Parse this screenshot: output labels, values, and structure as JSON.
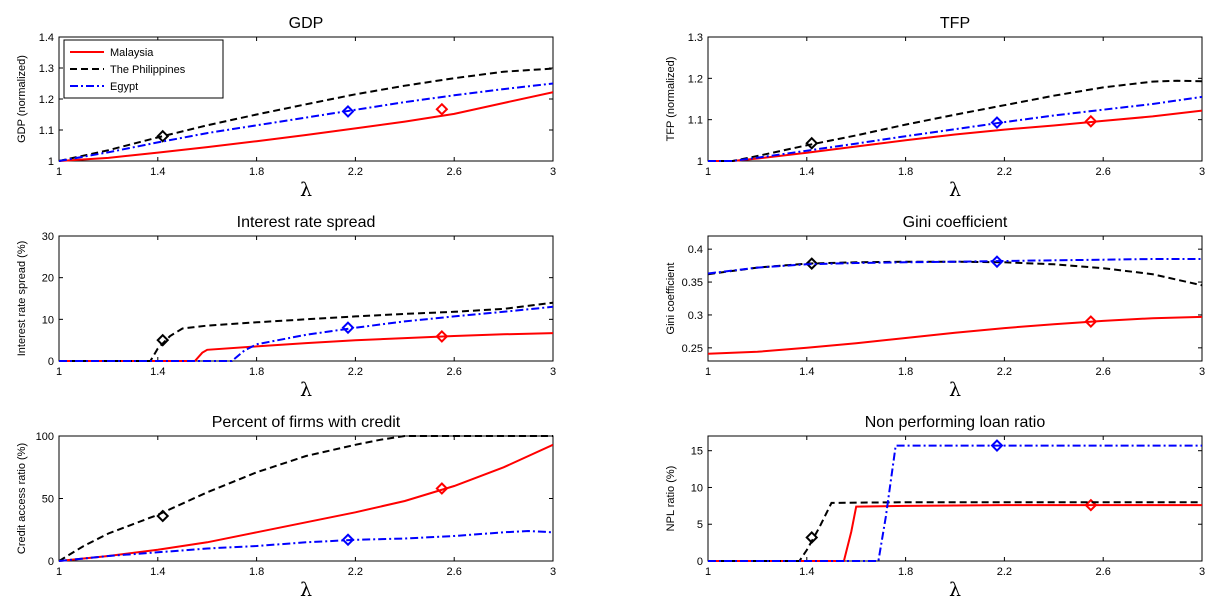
{
  "figure": {
    "xlabel": "λ"
  },
  "chart_data": [
    {
      "type": "line",
      "title": "GDP",
      "xlabel": "λ",
      "ylabel": "GDP (normalized)",
      "xlim": [
        1,
        3
      ],
      "ylim": [
        1,
        1.4
      ],
      "xticks": [
        "1",
        "1.4",
        "1.8",
        "2.2",
        "2.6",
        "3"
      ],
      "yticks": [
        "1",
        "1.1",
        "1.2",
        "1.3",
        "1.4"
      ],
      "legend": {
        "position": "top-left",
        "entries": [
          "Malaysia",
          "The Philippines",
          "Egypt"
        ]
      },
      "series": [
        {
          "name": "Malaysia",
          "color": "#ff0000",
          "style": "solid",
          "x": [
            1,
            1.2,
            1.4,
            1.6,
            1.8,
            2.0,
            2.2,
            2.4,
            2.6,
            2.8,
            3.0
          ],
          "y": [
            1.0,
            1.01,
            1.027,
            1.045,
            1.064,
            1.084,
            1.105,
            1.127,
            1.152,
            1.187,
            1.222
          ],
          "marker": [
            2.55,
            1.167
          ]
        },
        {
          "name": "The Philippines",
          "color": "#000000",
          "style": "dashed",
          "x": [
            1,
            1.2,
            1.4,
            1.6,
            1.8,
            2.0,
            2.2,
            2.4,
            2.6,
            2.8,
            3.0
          ],
          "y": [
            1.0,
            1.035,
            1.076,
            1.115,
            1.15,
            1.183,
            1.215,
            1.243,
            1.267,
            1.288,
            1.298
          ],
          "marker": [
            1.42,
            1.08
          ]
        },
        {
          "name": "Egypt",
          "color": "#0000ff",
          "style": "dashdot",
          "x": [
            1,
            1.2,
            1.4,
            1.6,
            1.8,
            2.0,
            2.2,
            2.4,
            2.6,
            2.8,
            3.0
          ],
          "y": [
            1.0,
            1.028,
            1.06,
            1.09,
            1.115,
            1.14,
            1.165,
            1.19,
            1.212,
            1.232,
            1.25
          ],
          "marker": [
            2.17,
            1.16
          ]
        }
      ]
    },
    {
      "type": "line",
      "title": "TFP",
      "xlabel": "λ",
      "ylabel": "TFP (normalized)",
      "xlim": [
        1,
        3
      ],
      "ylim": [
        1,
        1.3
      ],
      "xticks": [
        "1",
        "1.4",
        "1.8",
        "2.2",
        "2.6",
        "3"
      ],
      "yticks": [
        "1",
        "1.1",
        "1.2",
        "1.3"
      ],
      "series": [
        {
          "name": "Malaysia",
          "color": "#ff0000",
          "style": "solid",
          "x": [
            1,
            1.1,
            1.2,
            1.4,
            1.6,
            1.8,
            2.0,
            2.2,
            2.4,
            2.6,
            2.8,
            3.0
          ],
          "y": [
            1.0,
            1.0,
            1.006,
            1.02,
            1.035,
            1.05,
            1.064,
            1.076,
            1.086,
            1.097,
            1.108,
            1.122
          ],
          "marker": [
            2.55,
            1.096
          ]
        },
        {
          "name": "The Philippines",
          "color": "#000000",
          "style": "dashed",
          "x": [
            1,
            1.1,
            1.2,
            1.4,
            1.6,
            1.8,
            2.0,
            2.2,
            2.4,
            2.6,
            2.8,
            2.9,
            3.0
          ],
          "y": [
            1.0,
            1.0,
            1.012,
            1.038,
            1.062,
            1.088,
            1.112,
            1.135,
            1.158,
            1.178,
            1.192,
            1.194,
            1.193
          ],
          "marker": [
            1.42,
            1.043
          ]
        },
        {
          "name": "Egypt",
          "color": "#0000ff",
          "style": "dashdot",
          "x": [
            1,
            1.1,
            1.2,
            1.4,
            1.6,
            1.8,
            2.0,
            2.2,
            2.4,
            2.6,
            2.8,
            3.0
          ],
          "y": [
            1.0,
            1.0,
            1.008,
            1.025,
            1.042,
            1.06,
            1.077,
            1.094,
            1.11,
            1.124,
            1.138,
            1.155
          ],
          "marker": [
            2.17,
            1.093
          ]
        }
      ]
    },
    {
      "type": "line",
      "title": "Interest rate spread",
      "xlabel": "λ",
      "ylabel": "Interest rate spread (%)",
      "xlim": [
        1,
        3
      ],
      "ylim": [
        0,
        30
      ],
      "xticks": [
        "1",
        "1.4",
        "1.8",
        "2.2",
        "2.6",
        "3"
      ],
      "yticks": [
        "0",
        "10",
        "20",
        "30"
      ],
      "series": [
        {
          "name": "Malaysia",
          "color": "#ff0000",
          "style": "solid",
          "x": [
            1,
            1.55,
            1.58,
            1.6,
            1.8,
            2.0,
            2.2,
            2.4,
            2.6,
            2.8,
            3.0
          ],
          "y": [
            0,
            0,
            2.0,
            2.7,
            3.5,
            4.3,
            5.0,
            5.5,
            6.0,
            6.4,
            6.7
          ],
          "marker": [
            2.55,
            5.9
          ]
        },
        {
          "name": "The Philippines",
          "color": "#000000",
          "style": "dashed",
          "x": [
            1,
            1.37,
            1.4,
            1.45,
            1.5,
            1.6,
            1.8,
            2.0,
            2.2,
            2.4,
            2.6,
            2.8,
            3.0
          ],
          "y": [
            0,
            0,
            3.0,
            6.0,
            7.8,
            8.5,
            9.3,
            10.0,
            10.7,
            11.3,
            11.8,
            12.5,
            14.0
          ],
          "marker": [
            1.42,
            5.0
          ]
        },
        {
          "name": "Egypt",
          "color": "#0000ff",
          "style": "dashdot",
          "x": [
            1,
            1.7,
            1.75,
            1.8,
            2.0,
            2.2,
            2.4,
            2.6,
            2.8,
            3.0
          ],
          "y": [
            0,
            0,
            2.5,
            4.0,
            6.3,
            8.0,
            9.5,
            10.7,
            11.8,
            13.0
          ],
          "marker": [
            2.17,
            8.0
          ]
        }
      ]
    },
    {
      "type": "line",
      "title": "Gini coefficient",
      "xlabel": "λ",
      "ylabel": "Gini coefficient",
      "xlim": [
        1,
        3
      ],
      "ylim": [
        0.23,
        0.42
      ],
      "xticks": [
        "1",
        "1.4",
        "1.8",
        "2.2",
        "2.6",
        "3"
      ],
      "yticks": [
        "0.25",
        "0.3",
        "0.35",
        "0.4"
      ],
      "series": [
        {
          "name": "Malaysia",
          "color": "#ff0000",
          "style": "solid",
          "x": [
            1,
            1.2,
            1.4,
            1.6,
            1.8,
            2.0,
            2.2,
            2.4,
            2.6,
            2.8,
            3.0
          ],
          "y": [
            0.241,
            0.244,
            0.25,
            0.257,
            0.265,
            0.273,
            0.28,
            0.286,
            0.291,
            0.295,
            0.297
          ],
          "marker": [
            2.55,
            0.29
          ]
        },
        {
          "name": "The Philippines",
          "color": "#000000",
          "style": "dashed",
          "x": [
            1,
            1.2,
            1.4,
            1.6,
            1.8,
            2.0,
            2.2,
            2.4,
            2.6,
            2.8,
            3.0
          ],
          "y": [
            0.362,
            0.372,
            0.378,
            0.38,
            0.381,
            0.381,
            0.38,
            0.377,
            0.371,
            0.362,
            0.345
          ],
          "marker": [
            1.42,
            0.378
          ]
        },
        {
          "name": "Egypt",
          "color": "#0000ff",
          "style": "dashdot",
          "x": [
            1,
            1.2,
            1.4,
            1.6,
            1.8,
            2.0,
            2.2,
            2.4,
            2.6,
            2.8,
            3.0
          ],
          "y": [
            0.363,
            0.372,
            0.377,
            0.379,
            0.38,
            0.381,
            0.382,
            0.383,
            0.384,
            0.385,
            0.385
          ],
          "marker": [
            2.17,
            0.381
          ]
        }
      ]
    },
    {
      "type": "line",
      "title": "Percent of firms with credit",
      "xlabel": "λ",
      "ylabel": "Credit access ratio (%)",
      "xlim": [
        1,
        3
      ],
      "ylim": [
        0,
        100
      ],
      "xticks": [
        "1",
        "1.4",
        "1.8",
        "2.2",
        "2.6",
        "3"
      ],
      "yticks": [
        "0",
        "50",
        "100"
      ],
      "series": [
        {
          "name": "Malaysia",
          "color": "#ff0000",
          "style": "solid",
          "x": [
            1,
            1.2,
            1.4,
            1.6,
            1.8,
            2.0,
            2.2,
            2.4,
            2.6,
            2.8,
            3.0
          ],
          "y": [
            0,
            4,
            9,
            15,
            23,
            31,
            39,
            48,
            60,
            75,
            93
          ],
          "marker": [
            2.55,
            58
          ]
        },
        {
          "name": "The Philippines",
          "color": "#000000",
          "style": "dashed",
          "x": [
            1,
            1.1,
            1.2,
            1.4,
            1.6,
            1.8,
            2.0,
            2.2,
            2.3,
            2.4,
            2.6,
            2.8,
            3.0
          ],
          "y": [
            0,
            12,
            22,
            37,
            55,
            71,
            84,
            93,
            97,
            100,
            100,
            100,
            100
          ],
          "marker": [
            1.42,
            36
          ]
        },
        {
          "name": "Egypt",
          "color": "#0000ff",
          "style": "dashdot",
          "x": [
            1,
            1.2,
            1.4,
            1.6,
            1.8,
            2.0,
            2.2,
            2.4,
            2.6,
            2.8,
            2.9,
            3.0
          ],
          "y": [
            0,
            4,
            7,
            10,
            12,
            15,
            17,
            18,
            20,
            23,
            24,
            23
          ],
          "marker": [
            2.17,
            17
          ]
        }
      ]
    },
    {
      "type": "line",
      "title": "Non performing loan ratio",
      "xlabel": "λ",
      "ylabel": "NPL ratio (%)",
      "xlim": [
        1,
        3
      ],
      "ylim": [
        0,
        17
      ],
      "xticks": [
        "1",
        "1.4",
        "1.8",
        "2.2",
        "2.6",
        "3"
      ],
      "yticks": [
        "0",
        "5",
        "10",
        "15"
      ],
      "series": [
        {
          "name": "Malaysia",
          "color": "#ff0000",
          "style": "solid",
          "x": [
            1,
            1.55,
            1.58,
            1.6,
            1.8,
            2.2,
            2.6,
            3.0
          ],
          "y": [
            0,
            0,
            4.0,
            7.4,
            7.5,
            7.6,
            7.6,
            7.6
          ],
          "marker": [
            2.55,
            7.6
          ]
        },
        {
          "name": "The Philippines",
          "color": "#000000",
          "style": "dashed",
          "x": [
            1,
            1.37,
            1.4,
            1.45,
            1.5,
            1.8,
            2.2,
            2.6,
            3.0
          ],
          "y": [
            0,
            0,
            1.5,
            4.5,
            7.9,
            8.0,
            8.0,
            8.0,
            8.0
          ],
          "marker": [
            1.42,
            3.2
          ]
        },
        {
          "name": "Egypt",
          "color": "#0000ff",
          "style": "dashdot",
          "x": [
            1,
            1.69,
            1.72,
            1.76,
            1.8,
            2.2,
            2.6,
            3.0
          ],
          "y": [
            0,
            0,
            6.0,
            15.7,
            15.7,
            15.7,
            15.7,
            15.7
          ],
          "marker": [
            2.17,
            15.7
          ]
        }
      ]
    }
  ]
}
